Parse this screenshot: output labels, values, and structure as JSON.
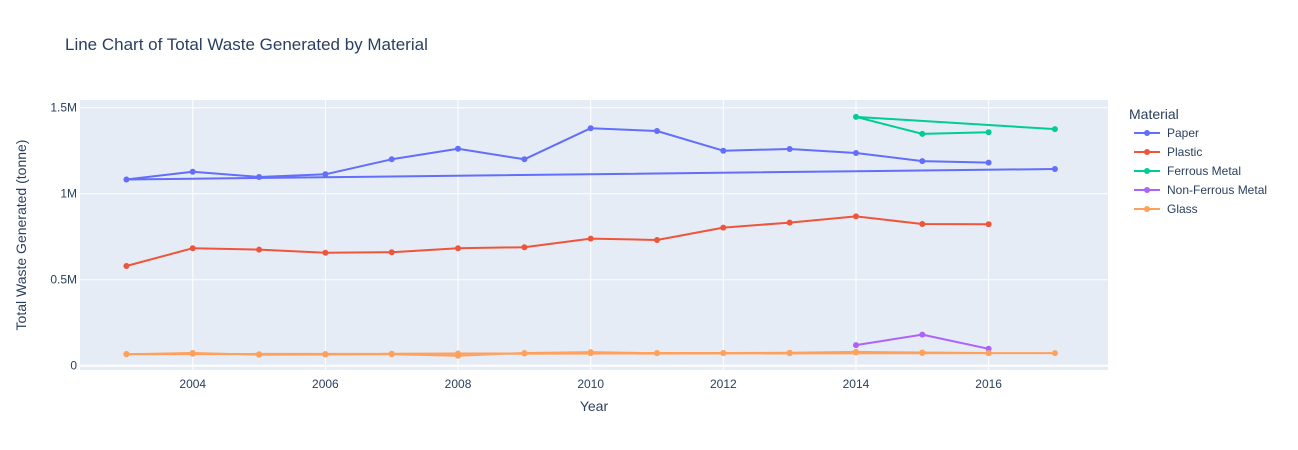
{
  "chart_data": {
    "type": "line",
    "title": "Line Chart of Total Waste Generated by Material",
    "xlabel": "Year",
    "ylabel": "Total Waste Generated (tonne)",
    "xlim": [
      2002.3,
      2017.8
    ],
    "ylim": [
      -25000,
      1545000
    ],
    "x_ticks": [
      {
        "value": 2004,
        "label": "2004"
      },
      {
        "value": 2006,
        "label": "2006"
      },
      {
        "value": 2008,
        "label": "2008"
      },
      {
        "value": 2010,
        "label": "2010"
      },
      {
        "value": 2012,
        "label": "2012"
      },
      {
        "value": 2014,
        "label": "2014"
      },
      {
        "value": 2016,
        "label": "2016"
      }
    ],
    "y_ticks": [
      {
        "value": 0,
        "label": "0"
      },
      {
        "value": 500000,
        "label": "0.5M"
      },
      {
        "value": 1000000,
        "label": "1M"
      },
      {
        "value": 1500000,
        "label": "1.5M"
      }
    ],
    "grid": true,
    "legend": {
      "title": "Material",
      "placement": "right"
    },
    "series": [
      {
        "name": "Paper",
        "color": "#636efa",
        "points": [
          [
            2017,
            1144000
          ],
          [
            2003,
            1083000
          ],
          [
            2004,
            1128000
          ],
          [
            2005,
            1097000
          ],
          [
            2006,
            1113000
          ],
          [
            2007,
            1200000
          ],
          [
            2008,
            1261000
          ],
          [
            2009,
            1200000
          ],
          [
            2010,
            1381000
          ],
          [
            2011,
            1365000
          ],
          [
            2012,
            1250000
          ],
          [
            2013,
            1260000
          ],
          [
            2014,
            1237000
          ],
          [
            2015,
            1190000
          ],
          [
            2016,
            1181000
          ]
        ]
      },
      {
        "name": "Plastic",
        "color": "#EF553B",
        "points": [
          [
            2003,
            580000
          ],
          [
            2004,
            683000
          ],
          [
            2005,
            675000
          ],
          [
            2006,
            657000
          ],
          [
            2007,
            660000
          ],
          [
            2008,
            683000
          ],
          [
            2009,
            689000
          ],
          [
            2010,
            739000
          ],
          [
            2011,
            731000
          ],
          [
            2012,
            803000
          ],
          [
            2013,
            832000
          ],
          [
            2014,
            868000
          ],
          [
            2015,
            824000
          ],
          [
            2016,
            822000
          ]
        ]
      },
      {
        "name": "Ferrous Metal",
        "color": "#00cc96",
        "points": [
          [
            2017,
            1376000
          ],
          [
            2014,
            1447000
          ],
          [
            2015,
            1348000
          ],
          [
            2016,
            1357000
          ]
        ]
      },
      {
        "name": "Non-Ferrous Metal",
        "color": "#ab63fa",
        "points": [
          [
            2014,
            120000
          ],
          [
            2015,
            181000
          ],
          [
            2016,
            98000
          ]
        ]
      },
      {
        "name": "Glass",
        "color": "#FFA15A",
        "points": [
          [
            2017,
            73000
          ],
          [
            2003,
            67000
          ],
          [
            2004,
            74000
          ],
          [
            2005,
            64000
          ],
          [
            2006,
            65000
          ],
          [
            2007,
            67000
          ],
          [
            2008,
            58000
          ],
          [
            2009,
            74000
          ],
          [
            2010,
            79000
          ],
          [
            2011,
            72000
          ],
          [
            2012,
            73000
          ],
          [
            2013,
            72000
          ],
          [
            2014,
            77000
          ],
          [
            2015,
            74000
          ],
          [
            2016,
            73000
          ],
          [
            2003,
            68000
          ],
          [
            2004,
            70000
          ],
          [
            2005,
            67000
          ],
          [
            2006,
            68000
          ],
          [
            2007,
            70000
          ],
          [
            2008,
            71000
          ],
          [
            2009,
            71000
          ],
          [
            2010,
            73000
          ],
          [
            2011,
            74000
          ],
          [
            2012,
            74000
          ],
          [
            2013,
            75000
          ],
          [
            2014,
            80000
          ],
          [
            2015,
            77000
          ],
          [
            2016,
            74000
          ]
        ]
      }
    ]
  }
}
